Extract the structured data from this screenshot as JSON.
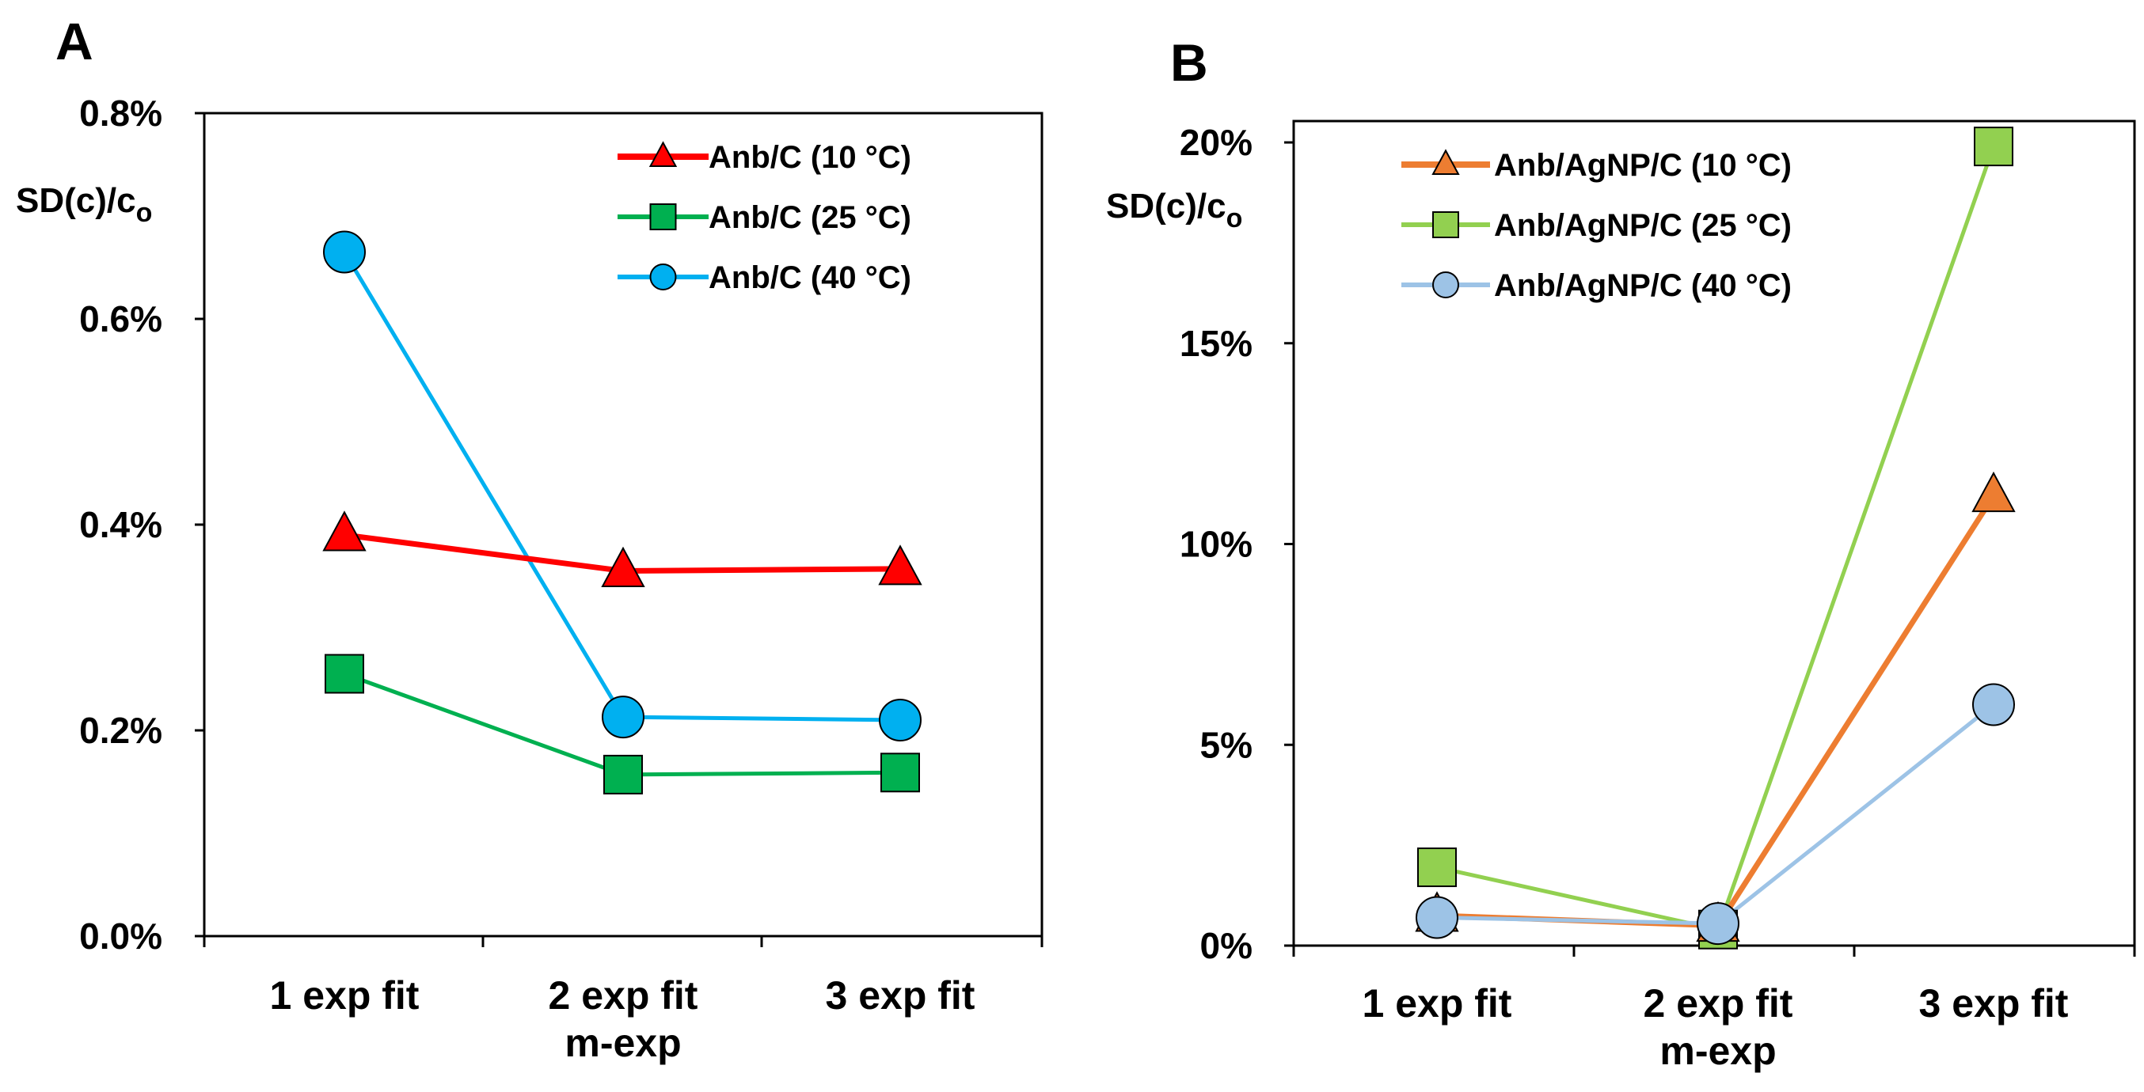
{
  "chart_data": [
    {
      "panel": "A",
      "type": "line",
      "ylabel": "SD(c)/c",
      "ylabel_sub": "o",
      "ylim": [
        0,
        0.8
      ],
      "yticks": [
        "0.0%",
        "0.2%",
        "0.4%",
        "0.6%",
        "0.8%"
      ],
      "categories": [
        "1 exp fit",
        "2 exp fit",
        "3 exp fit"
      ],
      "category_sublabels": [
        "",
        "m-exp",
        ""
      ],
      "legend_position": "top-right",
      "series": [
        {
          "name": "Anb/C (10 °C)",
          "marker": "triangle",
          "color": "#ff0000",
          "values": [
            0.39,
            0.355,
            0.357
          ]
        },
        {
          "name": "Anb/C (25 °C)",
          "marker": "square",
          "color": "#00b050",
          "values": [
            0.255,
            0.157,
            0.159
          ]
        },
        {
          "name": "Anb/C (40 °C)",
          "marker": "circle",
          "color": "#00b0f0",
          "values": [
            0.665,
            0.213,
            0.21
          ]
        }
      ]
    },
    {
      "panel": "B",
      "type": "line",
      "ylabel": "SD(c)/c",
      "ylabel_sub": "o",
      "ylim": [
        0,
        20
      ],
      "yticks": [
        "0%",
        "5%",
        "10%",
        "15%",
        "20%"
      ],
      "categories": [
        "1 exp fit",
        "2 exp fit",
        "3 exp fit"
      ],
      "category_sublabels": [
        "",
        "m-exp",
        ""
      ],
      "legend_position": "top-left",
      "series": [
        {
          "name": "Anb/AgNP/C (10 °C)",
          "marker": "triangle",
          "color": "#ed7d31",
          "values": [
            0.75,
            0.5,
            11.2
          ]
        },
        {
          "name": "Anb/AgNP/C (25 °C)",
          "marker": "square",
          "color": "#92d050",
          "values": [
            1.95,
            0.4,
            19.9
          ]
        },
        {
          "name": "Anb/AgNP/C (40 °C)",
          "marker": "circle",
          "color": "#9dc3e6",
          "values": [
            0.7,
            0.55,
            6.0
          ]
        }
      ]
    }
  ]
}
